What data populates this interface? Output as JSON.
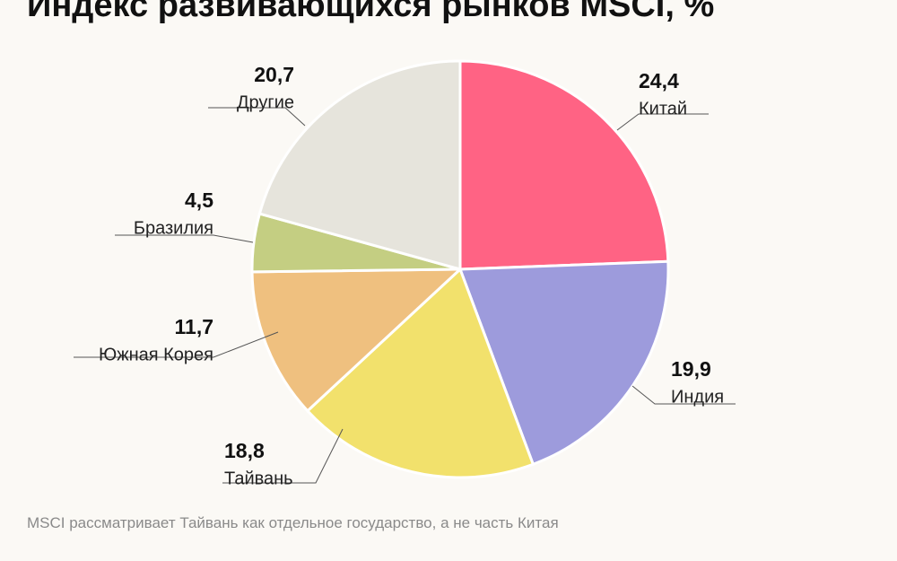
{
  "chart_data": {
    "type": "pie",
    "title": "Индекс развивающихся рынков MSCI, %",
    "slices": [
      {
        "label": "Китай",
        "value": 24.4,
        "value_text": "24,4",
        "color": "#ff6384"
      },
      {
        "label": "Индия",
        "value": 19.9,
        "value_text": "19,9",
        "color": "#9d9bdc"
      },
      {
        "label": "Тайвань",
        "value": 18.8,
        "value_text": "18,8",
        "color": "#f2e16c"
      },
      {
        "label": "Южная Корея",
        "value": 11.7,
        "value_text": "11,7",
        "color": "#efc07f"
      },
      {
        "label": "Бразилия",
        "value": 4.5,
        "value_text": "4,5",
        "color": "#c4ce82"
      },
      {
        "label": "Другие",
        "value": 20.7,
        "value_text": "20,7",
        "color": "#e6e4dc"
      }
    ]
  },
  "footnote": "MSCI рассматривает Тайвань как отдельное государство, а не часть Китая"
}
